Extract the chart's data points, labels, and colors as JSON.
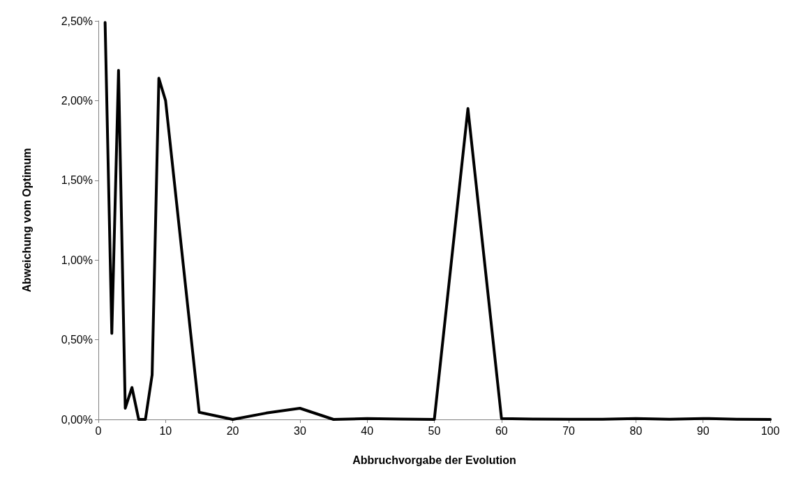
{
  "chart_data": {
    "type": "line",
    "xlabel": "Abbruchvorgabe der Evolution",
    "ylabel": "Abweichung vom Optimum",
    "x": [
      1,
      2,
      3,
      4,
      5,
      6,
      7,
      8,
      9,
      10,
      15,
      20,
      25,
      30,
      35,
      40,
      45,
      50,
      55,
      60,
      65,
      70,
      75,
      80,
      85,
      90,
      95,
      100
    ],
    "series": [
      {
        "color": "#000000",
        "values": [
          2.49,
          0.54,
          2.19,
          0.07,
          0.2,
          0,
          0,
          0.28,
          2.14,
          2.0,
          0.045,
          0,
          0.04,
          0.07,
          0,
          0.005,
          0.002,
          0,
          1.95,
          0.005,
          0.002,
          0.001,
          0.001,
          0.005,
          0.001,
          0.006,
          0.001,
          0
        ]
      }
    ],
    "xlim": [
      0,
      100
    ],
    "xticks": [
      0,
      10,
      20,
      30,
      40,
      50,
      60,
      70,
      80,
      90,
      100
    ],
    "ylim": [
      0,
      2.5
    ],
    "yticks": [
      {
        "value": 0,
        "label": "0,00%"
      },
      {
        "value": 0.5,
        "label": "0,50%"
      },
      {
        "value": 1,
        "label": "1,00%"
      },
      {
        "value": 1.5,
        "label": "1,50%"
      },
      {
        "value": 2,
        "label": "2,00%"
      },
      {
        "value": 2.5,
        "label": "2,50%"
      }
    ],
    "grid": false,
    "marker": "none",
    "line_style": "solid"
  }
}
